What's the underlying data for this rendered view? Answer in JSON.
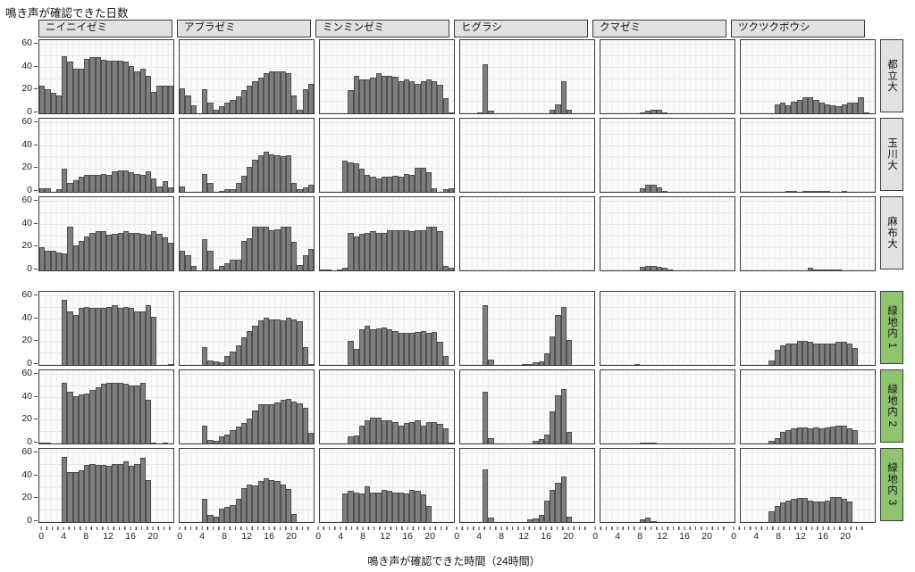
{
  "chart_data": {
    "type": "bar",
    "title": "鳴き声が確認できた日数",
    "xlabel": "鳴き声が確認できた時間（24時間）",
    "ylabel": "",
    "ylim": [
      0,
      60
    ],
    "y_ticks": [
      0,
      20,
      40,
      60
    ],
    "x_ticks": [
      0,
      4,
      8,
      12,
      16,
      20
    ],
    "x_unit": "hour of day (0-23), one bar per hour",
    "grid": "light vertical line per hour, light horizontal line every 10 days",
    "columns": [
      "ニイニイゼミ",
      "アブラゼミ",
      "ミンミンゼミ",
      "ヒグラシ",
      "クマゼミ",
      "ツクツクボウシ"
    ],
    "rows": [
      {
        "label": "都立大",
        "strip_color": "#e2e2e2"
      },
      {
        "label": "玉川大",
        "strip_color": "#e2e2e2"
      },
      {
        "label": "麻布大",
        "strip_color": "#e2e2e2"
      },
      {
        "label": "緑地内 1",
        "strip_color": "#8fc46f"
      },
      {
        "label": "緑地内 2",
        "strip_color": "#8fc46f"
      },
      {
        "label": "緑地内 3",
        "strip_color": "#8fc46f"
      }
    ],
    "bar_color": "#7e7e7e",
    "bar_border_color": "#4f4f4f",
    "panels": [
      [
        [
          24,
          21,
          18,
          16,
          50,
          45,
          39,
          39,
          48,
          49,
          49,
          47,
          46,
          46,
          46,
          45,
          41,
          37,
          39,
          33,
          19,
          24,
          24,
          24
        ],
        [
          22,
          16,
          7,
          0,
          21,
          9,
          3,
          6,
          9,
          12,
          15,
          20,
          24,
          28,
          31,
          35,
          37,
          37,
          37,
          35,
          16,
          3,
          21,
          26
        ],
        [
          0,
          0,
          0,
          0,
          0,
          20,
          33,
          30,
          30,
          31,
          35,
          33,
          33,
          32,
          28,
          30,
          28,
          26,
          28,
          30,
          28,
          25,
          13,
          1
        ],
        [
          0,
          0,
          0,
          1,
          43,
          2,
          0,
          0,
          0,
          0,
          0,
          0,
          0,
          0,
          0,
          0,
          3,
          8,
          28,
          3,
          0,
          0,
          0,
          0
        ],
        [
          0,
          0,
          0,
          0,
          0,
          0,
          0,
          1,
          2,
          3,
          3,
          1,
          0,
          0,
          0,
          0,
          0,
          0,
          0,
          0,
          0,
          0,
          0,
          0
        ],
        [
          0,
          0,
          0,
          0,
          0,
          0,
          8,
          9,
          7,
          10,
          12,
          14,
          14,
          12,
          9,
          8,
          7,
          6,
          8,
          9,
          9,
          14,
          1,
          0
        ]
      ],
      [
        [
          3,
          3,
          0,
          2,
          20,
          8,
          10,
          13,
          15,
          15,
          15,
          16,
          15,
          18,
          19,
          19,
          17,
          16,
          15,
          18,
          12,
          5,
          9,
          4
        ],
        [
          5,
          0,
          0,
          0,
          16,
          8,
          0,
          1,
          2,
          2,
          8,
          14,
          22,
          28,
          32,
          35,
          33,
          32,
          31,
          32,
          8,
          2,
          4,
          6
        ],
        [
          0,
          0,
          0,
          0,
          27,
          26,
          25,
          20,
          15,
          13,
          12,
          13,
          13,
          14,
          13,
          16,
          15,
          21,
          21,
          17,
          3,
          0,
          2,
          3
        ],
        [
          0,
          0,
          0,
          0,
          0,
          0,
          0,
          0,
          0,
          0,
          0,
          0,
          0,
          0,
          0,
          0,
          0,
          0,
          0,
          0,
          0,
          0,
          0,
          0
        ],
        [
          0,
          0,
          0,
          0,
          0,
          0,
          0,
          3,
          6,
          6,
          4,
          1,
          0,
          0,
          0,
          0,
          0,
          0,
          0,
          0,
          0,
          0,
          0,
          0
        ],
        [
          0,
          0,
          0,
          0,
          0,
          0,
          0,
          0,
          1,
          1,
          0,
          1,
          1,
          1,
          1,
          1,
          0,
          0,
          1,
          0,
          0,
          0,
          0,
          0
        ]
      ],
      [
        [
          20,
          17,
          17,
          16,
          15,
          38,
          22,
          26,
          30,
          33,
          34,
          34,
          31,
          32,
          33,
          34,
          33,
          33,
          32,
          31,
          34,
          32,
          29,
          24
        ],
        [
          17,
          13,
          4,
          0,
          27,
          17,
          1,
          4,
          6,
          9,
          9,
          26,
          28,
          38,
          38,
          38,
          35,
          36,
          38,
          38,
          25,
          5,
          13,
          19
        ],
        [
          1,
          1,
          0,
          1,
          2,
          33,
          30,
          32,
          33,
          34,
          33,
          33,
          35,
          35,
          35,
          35,
          34,
          35,
          35,
          38,
          38,
          34,
          4,
          2
        ],
        [
          0,
          0,
          0,
          0,
          0,
          0,
          0,
          0,
          0,
          0,
          0,
          0,
          0,
          0,
          0,
          0,
          0,
          0,
          0,
          0,
          0,
          0,
          0,
          0
        ],
        [
          0,
          0,
          0,
          0,
          0,
          0,
          0,
          3,
          4,
          4,
          3,
          2,
          1,
          0,
          0,
          0,
          0,
          0,
          0,
          0,
          0,
          0,
          0,
          0
        ],
        [
          0,
          0,
          0,
          0,
          0,
          0,
          0,
          0,
          0,
          0,
          0,
          0,
          2,
          1,
          1,
          1,
          1,
          1,
          0,
          0,
          0,
          0,
          0,
          0
        ]
      ],
      [
        [
          0,
          0,
          0,
          0,
          57,
          47,
          44,
          50,
          51,
          50,
          50,
          50,
          51,
          52,
          50,
          51,
          50,
          47,
          47,
          52,
          42,
          0,
          0,
          1
        ],
        [
          0,
          0,
          0,
          0,
          16,
          4,
          3,
          2,
          8,
          12,
          17,
          24,
          30,
          34,
          39,
          41,
          40,
          40,
          39,
          41,
          40,
          38,
          16,
          1
        ],
        [
          0,
          0,
          0,
          0,
          0,
          21,
          14,
          31,
          34,
          31,
          32,
          33,
          31,
          30,
          28,
          28,
          28,
          29,
          30,
          28,
          29,
          20,
          8,
          0
        ],
        [
          0,
          0,
          0,
          0,
          52,
          5,
          0,
          0,
          0,
          0,
          0,
          1,
          1,
          2,
          3,
          10,
          25,
          44,
          51,
          22,
          0,
          0,
          0,
          0
        ],
        [
          0,
          0,
          0,
          0,
          0,
          0,
          1,
          0,
          0,
          0,
          0,
          0,
          0,
          0,
          0,
          0,
          0,
          0,
          0,
          0,
          0,
          0,
          0,
          0
        ],
        [
          0,
          0,
          0,
          0,
          0,
          4,
          13,
          17,
          19,
          19,
          21,
          21,
          20,
          19,
          19,
          19,
          19,
          20,
          20,
          19,
          15,
          0,
          0,
          0
        ]
      ],
      [
        [
          1,
          1,
          0,
          0,
          53,
          45,
          41,
          43,
          44,
          47,
          49,
          52,
          53,
          53,
          53,
          52,
          51,
          51,
          53,
          38,
          1,
          0,
          1,
          0
        ],
        [
          0,
          0,
          0,
          0,
          16,
          3,
          2,
          6,
          8,
          12,
          15,
          18,
          22,
          29,
          34,
          34,
          34,
          36,
          38,
          39,
          37,
          35,
          31,
          9
        ],
        [
          0,
          0,
          0,
          0,
          0,
          6,
          7,
          16,
          20,
          23,
          23,
          20,
          20,
          19,
          16,
          18,
          19,
          20,
          16,
          19,
          19,
          17,
          13,
          1
        ],
        [
          0,
          0,
          0,
          0,
          45,
          5,
          0,
          0,
          0,
          0,
          0,
          0,
          0,
          2,
          4,
          8,
          28,
          42,
          48,
          10,
          0,
          0,
          0,
          0
        ],
        [
          0,
          0,
          0,
          0,
          0,
          0,
          0,
          1,
          1,
          1,
          0,
          0,
          0,
          0,
          0,
          0,
          0,
          0,
          0,
          0,
          0,
          0,
          0,
          0
        ],
        [
          0,
          0,
          0,
          0,
          0,
          2,
          5,
          10,
          12,
          13,
          14,
          14,
          13,
          14,
          13,
          14,
          15,
          16,
          16,
          13,
          12,
          0,
          0,
          0
        ]
      ],
      [
        [
          0,
          0,
          0,
          0,
          57,
          44,
          44,
          45,
          50,
          51,
          50,
          50,
          49,
          51,
          51,
          53,
          49,
          51,
          56,
          37,
          0,
          0,
          0,
          0
        ],
        [
          0,
          0,
          0,
          0,
          20,
          6,
          5,
          12,
          13,
          15,
          20,
          30,
          33,
          32,
          36,
          38,
          37,
          36,
          33,
          29,
          7,
          0,
          0,
          0
        ],
        [
          0,
          0,
          0,
          0,
          25,
          27,
          26,
          25,
          31,
          26,
          26,
          28,
          27,
          26,
          26,
          25,
          28,
          27,
          24,
          14,
          0,
          0,
          0,
          0
        ],
        [
          0,
          0,
          0,
          0,
          46,
          4,
          0,
          0,
          0,
          0,
          0,
          0,
          2,
          3,
          6,
          19,
          28,
          34,
          40,
          5,
          0,
          0,
          0,
          0
        ],
        [
          0,
          0,
          0,
          0,
          0,
          0,
          0,
          2,
          4,
          1,
          0,
          0,
          0,
          0,
          0,
          0,
          0,
          0,
          0,
          0,
          0,
          0,
          0,
          0
        ],
        [
          0,
          0,
          0,
          0,
          0,
          9,
          14,
          17,
          19,
          20,
          21,
          21,
          19,
          18,
          18,
          19,
          22,
          22,
          20,
          18,
          0,
          0,
          0,
          0
        ]
      ]
    ]
  }
}
